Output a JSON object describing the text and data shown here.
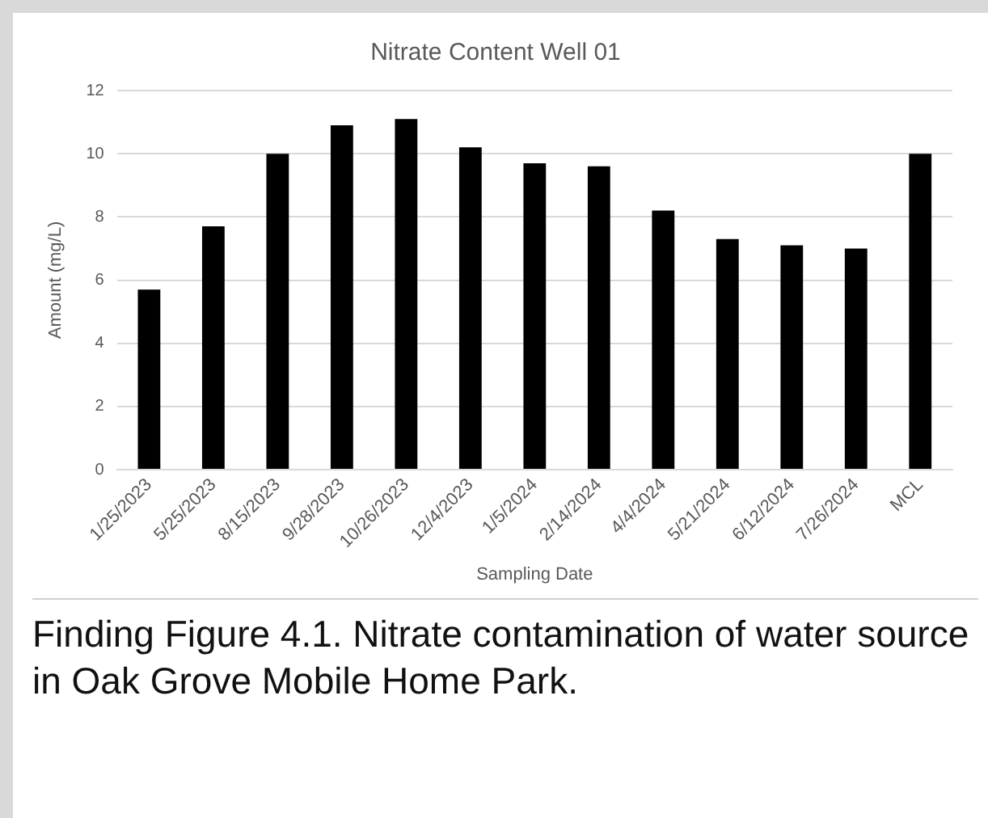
{
  "chart_data": {
    "type": "bar",
    "title": "Nitrate Content Well 01",
    "xlabel": "Sampling Date",
    "ylabel": "Amount (mg/L)",
    "categories": [
      "1/25/2023",
      "5/25/2023",
      "8/15/2023",
      "9/28/2023",
      "10/26/2023",
      "12/4/2023",
      "1/5/2024",
      "2/14/2024",
      "4/4/2024",
      "5/21/2024",
      "6/12/2024",
      "7/26/2024",
      "MCL"
    ],
    "values": [
      5.7,
      7.7,
      10.0,
      10.9,
      11.1,
      10.2,
      9.7,
      9.6,
      8.2,
      7.3,
      7.1,
      7.0,
      10.0
    ],
    "color": "#000000",
    "ylim": [
      0,
      12
    ],
    "yticks": [
      0,
      2,
      4,
      6,
      8,
      10,
      12
    ],
    "grid": "y",
    "legend": false,
    "annotations": [
      "Finding Figure 4.1. Nitrate contamination of water source in Oak Grove Mobile Home Park."
    ]
  }
}
